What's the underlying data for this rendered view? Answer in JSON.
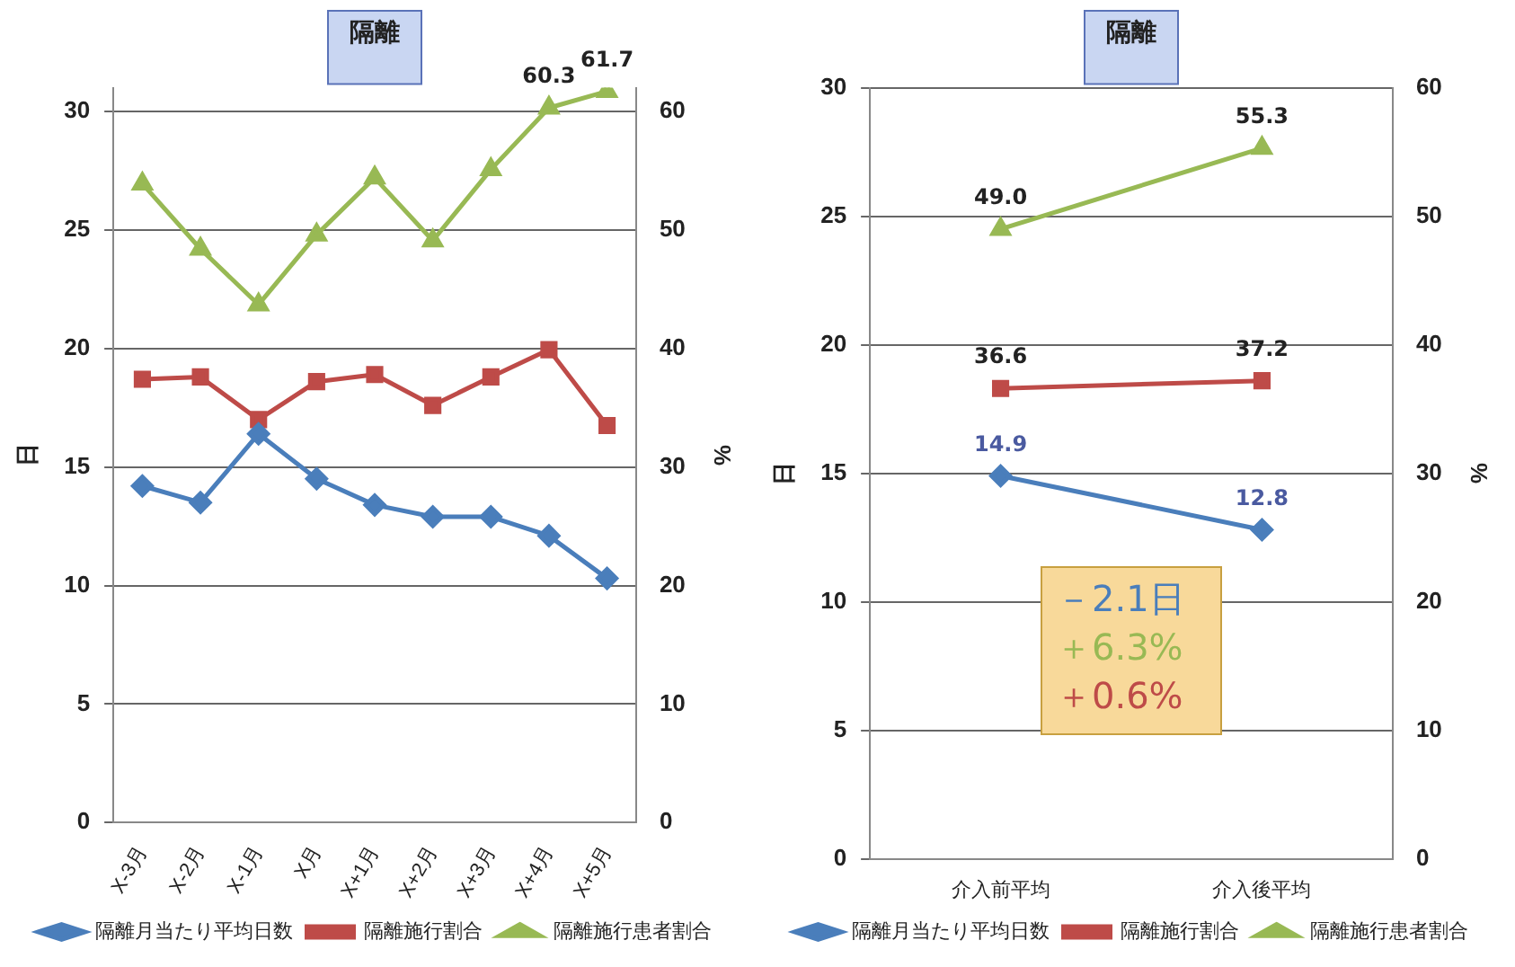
{
  "chart_data": [
    {
      "type": "line",
      "title": "隔離",
      "ylabel": "日",
      "y2label": "%",
      "categories": [
        "X-3月",
        "X-2月",
        "X-1月",
        "X月",
        "X+1月",
        "X+2月",
        "X+3月",
        "X+4月",
        "X+5月"
      ],
      "series": [
        {
          "name": "隔離月当たり平均日数",
          "color": "#4a7ebb",
          "marker": "diamond",
          "values": [
            14.2,
            13.5,
            16.4,
            14.5,
            13.4,
            12.9,
            12.9,
            12.1,
            10.3
          ]
        },
        {
          "name": "隔離施行割合",
          "color": "#be4b48",
          "marker": "square",
          "axis": "y2",
          "values": [
            37.4,
            37.6,
            34.0,
            37.2,
            37.8,
            35.2,
            37.6,
            39.9,
            33.5
          ]
        },
        {
          "name": "隔離施行患者割合",
          "color": "#98b954",
          "marker": "triangle",
          "axis": "y2",
          "values": [
            53.9,
            48.4,
            43.7,
            49.6,
            54.4,
            49.1,
            55.1,
            60.3,
            61.7
          ],
          "value_labels": [
            null,
            null,
            null,
            null,
            null,
            null,
            null,
            "60.3",
            "61.7"
          ]
        }
      ],
      "ylim": [
        0,
        31
      ],
      "yticks": [
        0,
        5,
        10,
        15,
        20,
        25,
        30
      ],
      "y2lim": [
        0,
        62
      ],
      "y2ticks": [
        0,
        10,
        20,
        30,
        40,
        50,
        60
      ],
      "grid": "y",
      "legend": "bottom"
    },
    {
      "type": "line",
      "title": "隔離",
      "ylabel": "日",
      "y2label": "%",
      "categories": [
        "介入前平均",
        "介入後平均"
      ],
      "series": [
        {
          "name": "隔離月当たり平均日数",
          "color": "#4a7ebb",
          "marker": "diamond",
          "values": [
            14.9,
            12.8
          ],
          "value_labels": [
            "14.9",
            "12.8"
          ]
        },
        {
          "name": "隔離施行割合",
          "color": "#be4b48",
          "marker": "square",
          "axis": "y2",
          "values": [
            36.6,
            37.2
          ],
          "value_labels": [
            "36.6",
            "37.2"
          ]
        },
        {
          "name": "隔離施行患者割合",
          "color": "#98b954",
          "marker": "triangle",
          "axis": "y2",
          "values": [
            49.0,
            55.3
          ],
          "value_labels": [
            "49.0",
            "55.3"
          ]
        }
      ],
      "ylim": [
        0,
        30
      ],
      "yticks": [
        0,
        5,
        10,
        15,
        20,
        25,
        30
      ],
      "y2lim": [
        0,
        60
      ],
      "y2ticks": [
        0,
        10,
        20,
        30,
        40,
        50,
        60
      ],
      "grid": "y",
      "legend": "bottom",
      "annotations": [
        "－2.1日",
        "＋6.3%",
        "＋0.6%"
      ]
    }
  ]
}
